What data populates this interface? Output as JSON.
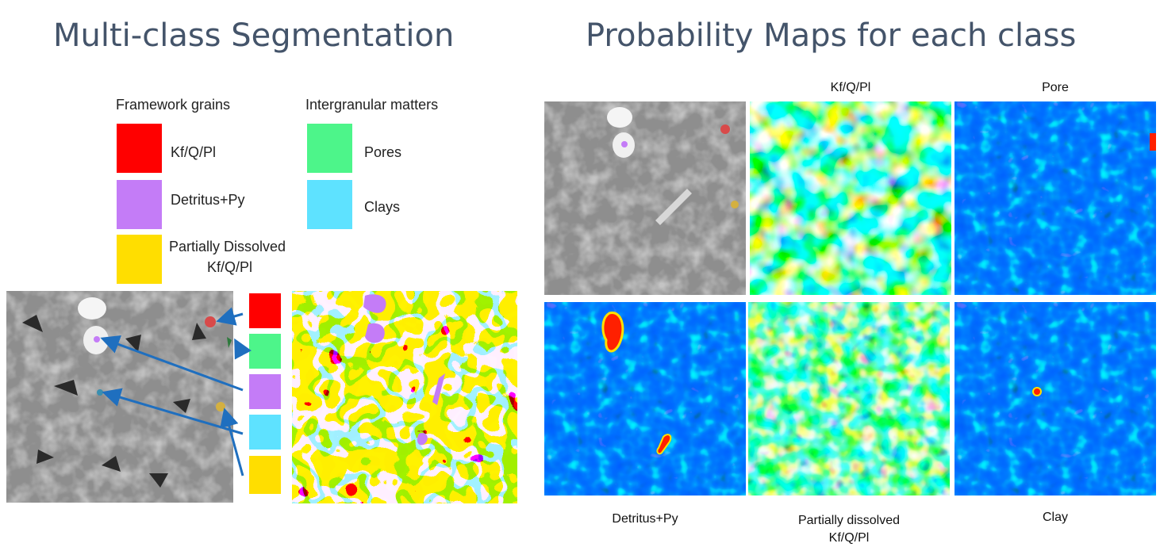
{
  "titles": {
    "left": "Multi-class Segmentation",
    "right": "Probability Maps for each class"
  },
  "legend": {
    "framework_heading": "Framework grains",
    "intergranular_heading": "Intergranular matters",
    "framework": [
      {
        "label": "Kf/Q/Pl",
        "color": "#ff0000"
      },
      {
        "label": "Detritus+Py",
        "color": "#c47cf7"
      },
      {
        "label": "Partially Dissolved",
        "label2": "Kf/Q/Pl",
        "color": "#ffde00"
      }
    ],
    "intergranular": [
      {
        "label": "Pores",
        "color": "#4df58a"
      },
      {
        "label": "Clays",
        "color": "#5ee2ff"
      }
    ]
  },
  "strip_colors": [
    "#ff0000",
    "#4df58a",
    "#c47cf7",
    "#5ee2ff",
    "#ffde00"
  ],
  "prob_maps": {
    "top": [
      "Kf/Q/Pl",
      "Pore"
    ],
    "bottom": [
      "Detritus+Py",
      "Partially dissolved",
      "Clay"
    ],
    "bottom_line2": "Kf/Q/Pl"
  },
  "colors": {
    "title": "#44546a",
    "arrow": "#1f6fbf",
    "jet_low": "#0a1cf0",
    "jet_high": "#ff2000"
  }
}
